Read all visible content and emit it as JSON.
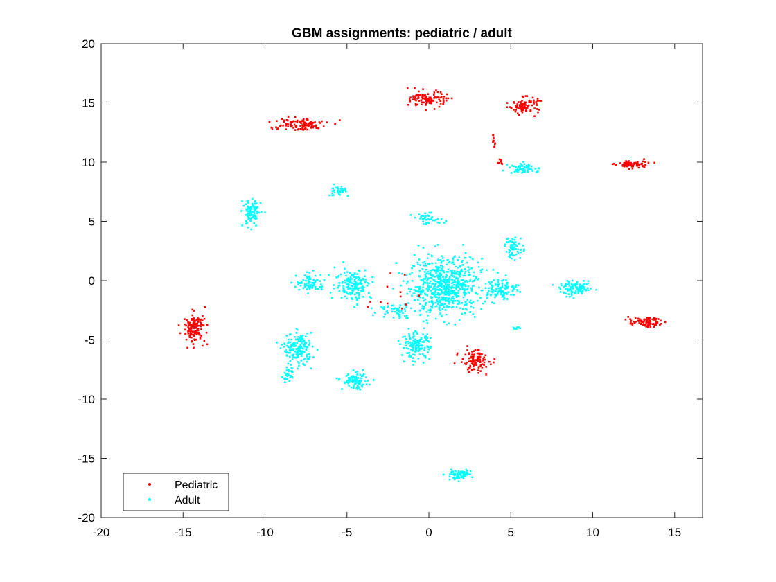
{
  "chart_data": {
    "type": "scatter",
    "title": "GBM assignments: pediatric / adult",
    "xlabel": "",
    "ylabel": "",
    "xlim": [
      -20,
      16.7
    ],
    "ylim": [
      -20,
      20
    ],
    "xticks": [
      -20,
      -15,
      -10,
      -5,
      0,
      5,
      10,
      15
    ],
    "yticks": [
      -20,
      -15,
      -10,
      -5,
      0,
      5,
      10,
      15,
      20
    ],
    "legend_position": "bottom-left",
    "series": [
      {
        "name": "Pediatric",
        "color": "#ff0000",
        "clusters": [
          {
            "label": "pediatric-cluster-top-left",
            "center": [
              -8.0,
              13.2
            ],
            "spread": [
              1.6,
              0.5
            ],
            "n": 110
          },
          {
            "label": "pediatric-cluster-top-center",
            "center": [
              0.0,
              15.3
            ],
            "spread": [
              1.0,
              0.6
            ],
            "n": 110
          },
          {
            "label": "pediatric-cluster-top-right",
            "center": [
              5.8,
              14.8
            ],
            "spread": [
              0.8,
              0.6
            ],
            "n": 90
          },
          {
            "label": "pediatric-cluster-right",
            "center": [
              12.4,
              9.8
            ],
            "spread": [
              0.9,
              0.3
            ],
            "n": 70
          },
          {
            "label": "pediatric-cluster-small-upper",
            "center": [
              3.9,
              11.8
            ],
            "spread": [
              0.2,
              0.4
            ],
            "n": 10
          },
          {
            "label": "pediatric-cluster-small-mid",
            "center": [
              4.4,
              10.0
            ],
            "spread": [
              0.2,
              0.3
            ],
            "n": 8
          },
          {
            "label": "pediatric-cluster-left",
            "center": [
              -14.3,
              -4.0
            ],
            "spread": [
              0.6,
              1.1
            ],
            "n": 130
          },
          {
            "label": "pediatric-cluster-lower-center",
            "center": [
              2.8,
              -6.8
            ],
            "spread": [
              0.8,
              0.9
            ],
            "n": 110
          },
          {
            "label": "pediatric-cluster-right-lower",
            "center": [
              13.2,
              -3.5
            ],
            "spread": [
              0.9,
              0.35
            ],
            "n": 80
          },
          {
            "label": "pediatric-scattered",
            "center": [
              -2.0,
              -1.5
            ],
            "spread": [
              2.5,
              1.5
            ],
            "n": 12
          }
        ]
      },
      {
        "name": "Adult",
        "color": "#00ffff",
        "clusters": [
          {
            "label": "adult-cluster-center",
            "center": [
              1.0,
              -0.5
            ],
            "spread": [
              2.0,
              2.2
            ],
            "n": 650
          },
          {
            "label": "adult-cluster-center-lower",
            "center": [
              -0.8,
              -5.5
            ],
            "spread": [
              0.8,
              1.0
            ],
            "n": 140
          },
          {
            "label": "adult-cluster-left-center",
            "center": [
              -4.6,
              -0.3
            ],
            "spread": [
              1.0,
              1.2
            ],
            "n": 160
          },
          {
            "label": "adult-cluster-left-mid",
            "center": [
              -7.2,
              -0.2
            ],
            "spread": [
              0.8,
              0.7
            ],
            "n": 80
          },
          {
            "label": "adult-cluster-lower-left",
            "center": [
              -8.0,
              -5.8
            ],
            "spread": [
              0.8,
              1.2
            ],
            "n": 170
          },
          {
            "label": "adult-cluster-bottom-left-tail",
            "center": [
              -8.6,
              -8.0
            ],
            "spread": [
              0.3,
              0.6
            ],
            "n": 30
          },
          {
            "label": "adult-cluster-lower",
            "center": [
              -4.5,
              -8.5
            ],
            "spread": [
              0.7,
              0.6
            ],
            "n": 90
          },
          {
            "label": "adult-cluster-upper-left",
            "center": [
              -10.8,
              5.7
            ],
            "spread": [
              0.5,
              1.1
            ],
            "n": 100
          },
          {
            "label": "adult-cluster-upper-small",
            "center": [
              -5.6,
              7.6
            ],
            "spread": [
              0.5,
              0.4
            ],
            "n": 35
          },
          {
            "label": "adult-cluster-upper-center",
            "center": [
              0.0,
              5.2
            ],
            "spread": [
              0.9,
              0.4
            ],
            "n": 40
          },
          {
            "label": "adult-cluster-right-upper",
            "center": [
              5.2,
              2.8
            ],
            "spread": [
              0.5,
              0.9
            ],
            "n": 60
          },
          {
            "label": "adult-cluster-right-center",
            "center": [
              4.5,
              -0.7
            ],
            "spread": [
              0.9,
              0.8
            ],
            "n": 100
          },
          {
            "label": "adult-cluster-right",
            "center": [
              9.0,
              -0.7
            ],
            "spread": [
              0.9,
              0.5
            ],
            "n": 110
          },
          {
            "label": "adult-cluster-upper-right-wing",
            "center": [
              5.8,
              9.5
            ],
            "spread": [
              0.8,
              0.4
            ],
            "n": 60
          },
          {
            "label": "adult-cluster-bottom",
            "center": [
              1.8,
              -16.4
            ],
            "spread": [
              0.7,
              0.35
            ],
            "n": 70
          },
          {
            "label": "adult-cluster-mid-bridge",
            "center": [
              -2.0,
              -2.5
            ],
            "spread": [
              1.0,
              0.6
            ],
            "n": 50
          },
          {
            "label": "adult-cluster-right-mid-small",
            "center": [
              5.3,
              -4.0
            ],
            "spread": [
              0.2,
              0.2
            ],
            "n": 10
          }
        ]
      }
    ]
  }
}
